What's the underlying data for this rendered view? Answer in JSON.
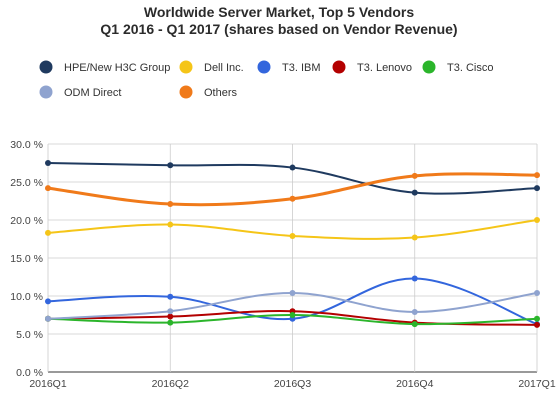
{
  "chart_data": {
    "type": "line",
    "title_line1": "Worldwide Server Market, Top 5 Vendors",
    "title_line2": "Q1 2016 - Q1 2017 (shares based on Vendor Revenue)",
    "categories": [
      "2016Q1",
      "2016Q2",
      "2016Q3",
      "2016Q4",
      "2017Q1"
    ],
    "y_tick_labels": [
      "0.0 %",
      "5.0 %",
      "10.0 %",
      "15.0 %",
      "20.0 %",
      "25.0 %",
      "30.0 %"
    ],
    "ylim": [
      0,
      30
    ],
    "y_step": 5,
    "grid": true,
    "legend_position": "top",
    "series": [
      {
        "name": "HPE/New H3C Group",
        "color": "#1f3a5f",
        "values": [
          27.5,
          27.2,
          26.9,
          23.6,
          24.2
        ]
      },
      {
        "name": "Dell Inc.",
        "color": "#f5c518",
        "values": [
          18.3,
          19.4,
          17.9,
          17.7,
          20.0
        ]
      },
      {
        "name": "T3. IBM",
        "color": "#3366dd",
        "values": [
          9.3,
          9.9,
          7.0,
          12.3,
          6.3
        ]
      },
      {
        "name": "T3. Lenovo",
        "color": "#b30000",
        "values": [
          7.0,
          7.3,
          8.0,
          6.5,
          6.2
        ]
      },
      {
        "name": "T3. Cisco",
        "color": "#2bb52b",
        "values": [
          7.0,
          6.5,
          7.5,
          6.3,
          7.0
        ]
      },
      {
        "name": "ODM Direct",
        "color": "#8fa3cf",
        "values": [
          7.0,
          8.0,
          10.4,
          7.9,
          10.4
        ]
      },
      {
        "name": "Others",
        "color": "#f07a1a",
        "values": [
          24.2,
          22.1,
          22.8,
          25.8,
          25.9
        ]
      }
    ]
  }
}
